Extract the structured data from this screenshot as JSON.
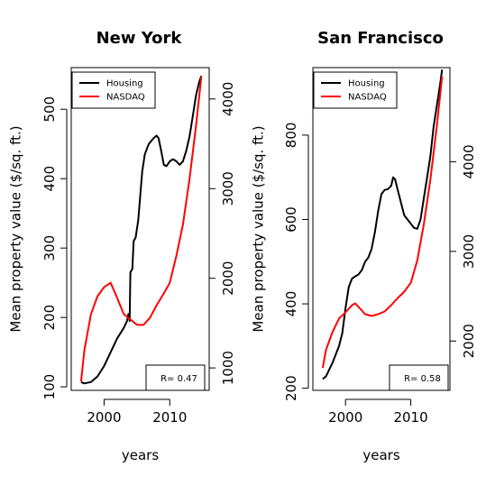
{
  "chart_data": [
    {
      "type": "line",
      "title": "New York",
      "xlabel": "years",
      "ylabel": "Mean property value ($/sq. ft.)",
      "x_ticks": [
        "2000",
        "2010"
      ],
      "xlim": [
        1995,
        2016
      ],
      "ylim_left": [
        95,
        560
      ],
      "y_ticks_left": [
        "100",
        "200",
        "300",
        "400",
        "500"
      ],
      "ylim_right": [
        750,
        4350
      ],
      "y_ticks_right": [
        "1000",
        "2000",
        "3000",
        "4000"
      ],
      "legend": {
        "position": "top-left",
        "entries": [
          "Housing",
          "NASDAQ"
        ]
      },
      "annotation": "R= 0.47",
      "series": [
        {
          "name": "Housing",
          "color": "#000000",
          "axis": "left",
          "points": [
            [
              1996.5,
              107
            ],
            [
              1997,
              105
            ],
            [
              1998,
              107
            ],
            [
              1999,
              115
            ],
            [
              2000,
              130
            ],
            [
              2001,
              150
            ],
            [
              2002,
              170
            ],
            [
              2003,
              185
            ],
            [
              2003.5,
              195
            ],
            [
              2003.7,
              205
            ],
            [
              2003.9,
              195
            ],
            [
              2004,
              265
            ],
            [
              2004.3,
              270
            ],
            [
              2004.5,
              310
            ],
            [
              2004.8,
              315
            ],
            [
              2005.2,
              340
            ],
            [
              2005.5,
              375
            ],
            [
              2005.8,
              410
            ],
            [
              2006.2,
              435
            ],
            [
              2006.8,
              450
            ],
            [
              2007.5,
              458
            ],
            [
              2008,
              462
            ],
            [
              2008.3,
              458
            ],
            [
              2008.7,
              440
            ],
            [
              2009.1,
              420
            ],
            [
              2009.5,
              418
            ],
            [
              2010,
              425
            ],
            [
              2010.5,
              428
            ],
            [
              2011,
              425
            ],
            [
              2011.5,
              420
            ],
            [
              2012,
              425
            ],
            [
              2012.5,
              440
            ],
            [
              2013,
              460
            ],
            [
              2013.5,
              490
            ],
            [
              2014,
              520
            ],
            [
              2014.5,
              540
            ],
            [
              2014.8,
              548
            ]
          ]
        },
        {
          "name": "NASDAQ",
          "color": "#ff0000",
          "axis": "right",
          "points": [
            [
              1996.5,
              850
            ],
            [
              1997,
              1200
            ],
            [
              1998,
              1600
            ],
            [
              1999,
              1800
            ],
            [
              2000,
              1900
            ],
            [
              2001,
              1950
            ],
            [
              2002,
              1780
            ],
            [
              2003,
              1600
            ],
            [
              2004,
              1540
            ],
            [
              2005,
              1480
            ],
            [
              2006,
              1480
            ],
            [
              2007,
              1560
            ],
            [
              2008,
              1700
            ],
            [
              2009,
              1820
            ],
            [
              2010,
              1950
            ],
            [
              2011,
              2250
            ],
            [
              2012,
              2600
            ],
            [
              2013,
              3100
            ],
            [
              2014,
              3700
            ],
            [
              2014.8,
              4250
            ]
          ]
        }
      ]
    },
    {
      "type": "line",
      "title": "San Francisco",
      "xlabel": "years",
      "ylabel": "Mean property value ($/sq. ft.)",
      "x_ticks": [
        "2000",
        "2010"
      ],
      "xlim": [
        1995,
        2016
      ],
      "ylim_left": [
        195,
        960
      ],
      "y_ticks_left": [
        "200",
        "400",
        "600",
        "800"
      ],
      "ylim_right": [
        1450,
        5050
      ],
      "y_ticks_right": [
        "2000",
        "3000",
        "4000"
      ],
      "legend": {
        "position": "top-left",
        "entries": [
          "Housing",
          "NASDAQ"
        ]
      },
      "annotation": "R= 0.58",
      "series": [
        {
          "name": "Housing",
          "color": "#000000",
          "axis": "left",
          "points": [
            [
              1996.5,
              222
            ],
            [
              1997,
              228
            ],
            [
              1998,
              260
            ],
            [
              1999,
              300
            ],
            [
              1999.5,
              330
            ],
            [
              2000,
              390
            ],
            [
              2000.5,
              440
            ],
            [
              2001,
              460
            ],
            [
              2001.5,
              465
            ],
            [
              2002,
              470
            ],
            [
              2002.5,
              480
            ],
            [
              2003,
              500
            ],
            [
              2003.5,
              510
            ],
            [
              2004,
              530
            ],
            [
              2004.5,
              570
            ],
            [
              2005,
              620
            ],
            [
              2005.5,
              660
            ],
            [
              2006,
              670
            ],
            [
              2006.5,
              672
            ],
            [
              2007,
              680
            ],
            [
              2007.3,
              700
            ],
            [
              2007.6,
              695
            ],
            [
              2008,
              670
            ],
            [
              2008.5,
              640
            ],
            [
              2009,
              610
            ],
            [
              2009.5,
              600
            ],
            [
              2010,
              590
            ],
            [
              2010.5,
              580
            ],
            [
              2011,
              578
            ],
            [
              2011.5,
              600
            ],
            [
              2012,
              650
            ],
            [
              2012.5,
              700
            ],
            [
              2013,
              750
            ],
            [
              2013.5,
              820
            ],
            [
              2014,
              870
            ],
            [
              2014.5,
              920
            ],
            [
              2014.8,
              955
            ]
          ]
        },
        {
          "name": "NASDAQ",
          "color": "#ff0000",
          "axis": "right",
          "points": [
            [
              1996.5,
              1700
            ],
            [
              1997,
              1900
            ],
            [
              1998,
              2100
            ],
            [
              1999,
              2250
            ],
            [
              2000,
              2320
            ],
            [
              2001,
              2400
            ],
            [
              2001.5,
              2420
            ],
            [
              2002,
              2380
            ],
            [
              2003,
              2300
            ],
            [
              2004,
              2280
            ],
            [
              2005,
              2300
            ],
            [
              2006,
              2330
            ],
            [
              2007,
              2400
            ],
            [
              2008,
              2480
            ],
            [
              2009,
              2550
            ],
            [
              2010,
              2650
            ],
            [
              2011,
              2900
            ],
            [
              2012,
              3300
            ],
            [
              2013,
              3800
            ],
            [
              2014,
              4400
            ],
            [
              2014.8,
              4950
            ]
          ]
        }
      ]
    }
  ]
}
